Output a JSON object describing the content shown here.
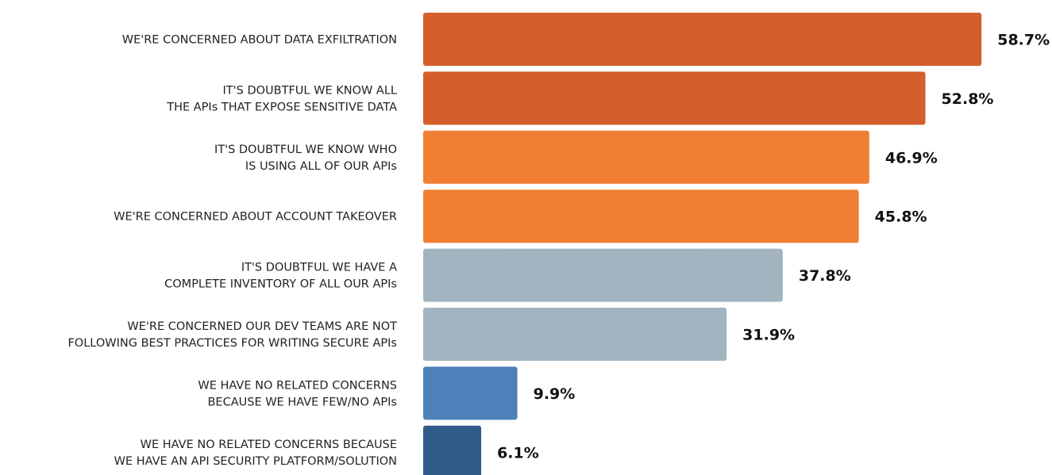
{
  "chart_data": {
    "type": "bar",
    "orientation": "horizontal",
    "categories": [
      [
        "WE'RE CONCERNED ABOUT DATA EXFILTRATION"
      ],
      [
        "IT'S DOUBTFUL WE KNOW ALL",
        "THE APIs THAT EXPOSE SENSITIVE DATA"
      ],
      [
        "IT'S DOUBTFUL WE KNOW WHO",
        "IS USING ALL OF OUR APIs"
      ],
      [
        "WE'RE CONCERNED ABOUT ACCOUNT TAKEOVER"
      ],
      [
        "IT'S DOUBTFUL WE HAVE A",
        "COMPLETE INVENTORY OF ALL OUR APIs"
      ],
      [
        "WE'RE CONCERNED OUR DEV TEAMS ARE NOT",
        "FOLLOWING BEST PRACTICES FOR WRITING SECURE APIs"
      ],
      [
        "WE HAVE NO RELATED CONCERNS",
        "BECAUSE WE HAVE FEW/NO APIs"
      ],
      [
        "WE HAVE NO RELATED CONCERNS BECAUSE",
        "WE HAVE AN API SECURITY PLATFORM/SOLUTION"
      ]
    ],
    "values": [
      58.7,
      52.8,
      46.9,
      45.8,
      37.8,
      31.9,
      9.9,
      6.1
    ],
    "value_labels": [
      "58.7%",
      "52.8%",
      "46.9%",
      "45.8%",
      "37.8%",
      "31.9%",
      "9.9%",
      "6.1%"
    ],
    "colors": [
      "#d45f2d",
      "#d45f2d",
      "#f07f33",
      "#f07f33",
      "#a3b4c1",
      "#a3b4c1",
      "#4e80b9",
      "#2f5b8a"
    ],
    "xlim": [
      0,
      60
    ],
    "grid": false,
    "legend": "none"
  }
}
